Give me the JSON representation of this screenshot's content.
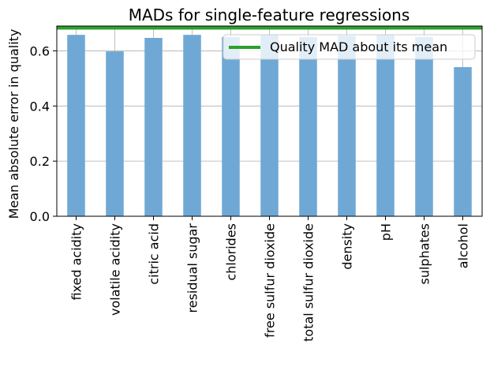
{
  "chart_data": {
    "type": "bar",
    "title": "MADs for single-feature regressions",
    "xlabel": "",
    "ylabel": "Mean absolute error in quality",
    "categories": [
      "fixed acidity",
      "volatile acidity",
      "citric acid",
      "residual sugar",
      "chlorides",
      "free sulfur dioxide",
      "total sulfur dioxide",
      "density",
      "pH",
      "sulphates",
      "alcohol"
    ],
    "values": [
      0.658,
      0.598,
      0.647,
      0.658,
      0.65,
      0.658,
      0.65,
      0.655,
      0.658,
      0.65,
      0.541
    ],
    "ylim": [
      0,
      0.69
    ],
    "yticks": [
      0.0,
      0.2,
      0.4,
      0.6
    ],
    "yticklabels": [
      "0.0",
      "0.2",
      "0.4",
      "0.6"
    ],
    "grid": true,
    "bar_color": "#6fa8d4",
    "reference_line": {
      "label": "Quality MAD about its mean",
      "value": 0.683,
      "color": "#2ca02c"
    },
    "legend": {
      "placement": "top-right",
      "entries": [
        "Quality MAD about its mean"
      ]
    }
  }
}
